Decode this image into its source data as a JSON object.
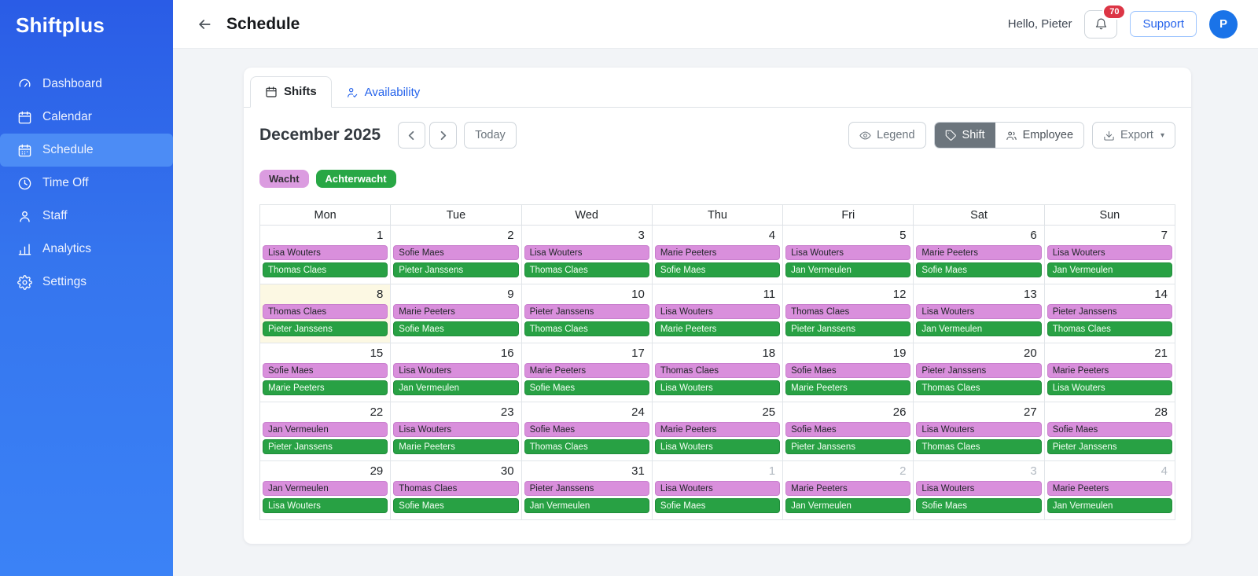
{
  "app": {
    "logo": "Shiftplus"
  },
  "sidebar": {
    "items": [
      {
        "label": "Dashboard",
        "icon": "gauge-icon",
        "active": false
      },
      {
        "label": "Calendar",
        "icon": "calendar-icon",
        "active": false
      },
      {
        "label": "Schedule",
        "icon": "schedule-calendar-icon",
        "active": true
      },
      {
        "label": "Time Off",
        "icon": "clock-icon",
        "active": false
      },
      {
        "label": "Staff",
        "icon": "person-icon",
        "active": false
      },
      {
        "label": "Analytics",
        "icon": "bar-chart-icon",
        "active": false
      },
      {
        "label": "Settings",
        "icon": "gear-icon",
        "active": false
      }
    ]
  },
  "header": {
    "title": "Schedule",
    "greeting": "Hello, Pieter",
    "notification_count": "70",
    "support_label": "Support",
    "avatar_initial": "P"
  },
  "tabs": [
    {
      "label": "Shifts",
      "icon": "calendar-icon",
      "active": true
    },
    {
      "label": "Availability",
      "icon": "person-check-icon",
      "active": false
    }
  ],
  "toolbar": {
    "month_title": "December 2025",
    "today_label": "Today",
    "legend_label": "Legend",
    "shift_label": "Shift",
    "employee_label": "Employee",
    "export_label": "Export",
    "export_caret": "▾"
  },
  "legend": [
    {
      "label": "Wacht",
      "color": "#db9ce0"
    },
    {
      "label": "Achterwacht",
      "color": "#28a745"
    }
  ],
  "colors": {
    "accent": "#2563eb",
    "sidebar_top": "#2a5ce6",
    "sidebar_bottom": "#3b82f6",
    "sidebar_active_item": "#4c8cf5",
    "wacht_chip_bg": "#d98fdc",
    "achterwacht_chip_bg": "#28a144",
    "today_cell_bg": "#fcf8e3",
    "notification_badge": "#dc3545",
    "avatar_bg": "#1a73e8",
    "shift_button_active_bg": "#6c757d"
  },
  "calendar": {
    "weekdays": [
      "Mon",
      "Tue",
      "Wed",
      "Thu",
      "Fri",
      "Sat",
      "Sun"
    ],
    "weeks": [
      [
        {
          "day": "1",
          "outside": false,
          "today": false,
          "wacht": "Lisa Wouters",
          "achterwacht": "Thomas Claes"
        },
        {
          "day": "2",
          "outside": false,
          "today": false,
          "wacht": "Sofie Maes",
          "achterwacht": "Pieter Janssens"
        },
        {
          "day": "3",
          "outside": false,
          "today": false,
          "wacht": "Lisa Wouters",
          "achterwacht": "Thomas Claes"
        },
        {
          "day": "4",
          "outside": false,
          "today": false,
          "wacht": "Marie Peeters",
          "achterwacht": "Sofie Maes"
        },
        {
          "day": "5",
          "outside": false,
          "today": false,
          "wacht": "Lisa Wouters",
          "achterwacht": "Jan Vermeulen"
        },
        {
          "day": "6",
          "outside": false,
          "today": false,
          "wacht": "Marie Peeters",
          "achterwacht": "Sofie Maes"
        },
        {
          "day": "7",
          "outside": false,
          "today": false,
          "wacht": "Lisa Wouters",
          "achterwacht": "Jan Vermeulen"
        }
      ],
      [
        {
          "day": "8",
          "outside": false,
          "today": true,
          "wacht": "Thomas Claes",
          "achterwacht": "Pieter Janssens"
        },
        {
          "day": "9",
          "outside": false,
          "today": false,
          "wacht": "Marie Peeters",
          "achterwacht": "Sofie Maes"
        },
        {
          "day": "10",
          "outside": false,
          "today": false,
          "wacht": "Pieter Janssens",
          "achterwacht": "Thomas Claes"
        },
        {
          "day": "11",
          "outside": false,
          "today": false,
          "wacht": "Lisa Wouters",
          "achterwacht": "Marie Peeters"
        },
        {
          "day": "12",
          "outside": false,
          "today": false,
          "wacht": "Thomas Claes",
          "achterwacht": "Pieter Janssens"
        },
        {
          "day": "13",
          "outside": false,
          "today": false,
          "wacht": "Lisa Wouters",
          "achterwacht": "Jan Vermeulen"
        },
        {
          "day": "14",
          "outside": false,
          "today": false,
          "wacht": "Pieter Janssens",
          "achterwacht": "Thomas Claes"
        }
      ],
      [
        {
          "day": "15",
          "outside": false,
          "today": false,
          "wacht": "Sofie Maes",
          "achterwacht": "Marie Peeters"
        },
        {
          "day": "16",
          "outside": false,
          "today": false,
          "wacht": "Lisa Wouters",
          "achterwacht": "Jan Vermeulen"
        },
        {
          "day": "17",
          "outside": false,
          "today": false,
          "wacht": "Marie Peeters",
          "achterwacht": "Sofie Maes"
        },
        {
          "day": "18",
          "outside": false,
          "today": false,
          "wacht": "Thomas Claes",
          "achterwacht": "Lisa Wouters"
        },
        {
          "day": "19",
          "outside": false,
          "today": false,
          "wacht": "Sofie Maes",
          "achterwacht": "Marie Peeters"
        },
        {
          "day": "20",
          "outside": false,
          "today": false,
          "wacht": "Pieter Janssens",
          "achterwacht": "Thomas Claes"
        },
        {
          "day": "21",
          "outside": false,
          "today": false,
          "wacht": "Marie Peeters",
          "achterwacht": "Lisa Wouters"
        }
      ],
      [
        {
          "day": "22",
          "outside": false,
          "today": false,
          "wacht": "Jan Vermeulen",
          "achterwacht": "Pieter Janssens"
        },
        {
          "day": "23",
          "outside": false,
          "today": false,
          "wacht": "Lisa Wouters",
          "achterwacht": "Marie Peeters"
        },
        {
          "day": "24",
          "outside": false,
          "today": false,
          "wacht": "Sofie Maes",
          "achterwacht": "Thomas Claes"
        },
        {
          "day": "25",
          "outside": false,
          "today": false,
          "wacht": "Marie Peeters",
          "achterwacht": "Lisa Wouters"
        },
        {
          "day": "26",
          "outside": false,
          "today": false,
          "wacht": "Sofie Maes",
          "achterwacht": "Pieter Janssens"
        },
        {
          "day": "27",
          "outside": false,
          "today": false,
          "wacht": "Lisa Wouters",
          "achterwacht": "Thomas Claes"
        },
        {
          "day": "28",
          "outside": false,
          "today": false,
          "wacht": "Sofie Maes",
          "achterwacht": "Pieter Janssens"
        }
      ],
      [
        {
          "day": "29",
          "outside": false,
          "today": false,
          "wacht": "Jan Vermeulen",
          "achterwacht": "Lisa Wouters"
        },
        {
          "day": "30",
          "outside": false,
          "today": false,
          "wacht": "Thomas Claes",
          "achterwacht": "Sofie Maes"
        },
        {
          "day": "31",
          "outside": false,
          "today": false,
          "wacht": "Pieter Janssens",
          "achterwacht": "Jan Vermeulen"
        },
        {
          "day": "1",
          "outside": true,
          "today": false,
          "wacht": "Lisa Wouters",
          "achterwacht": "Sofie Maes"
        },
        {
          "day": "2",
          "outside": true,
          "today": false,
          "wacht": "Marie Peeters",
          "achterwacht": "Jan Vermeulen"
        },
        {
          "day": "3",
          "outside": true,
          "today": false,
          "wacht": "Lisa Wouters",
          "achterwacht": "Sofie Maes"
        },
        {
          "day": "4",
          "outside": true,
          "today": false,
          "wacht": "Marie Peeters",
          "achterwacht": "Jan Vermeulen"
        }
      ]
    ]
  }
}
